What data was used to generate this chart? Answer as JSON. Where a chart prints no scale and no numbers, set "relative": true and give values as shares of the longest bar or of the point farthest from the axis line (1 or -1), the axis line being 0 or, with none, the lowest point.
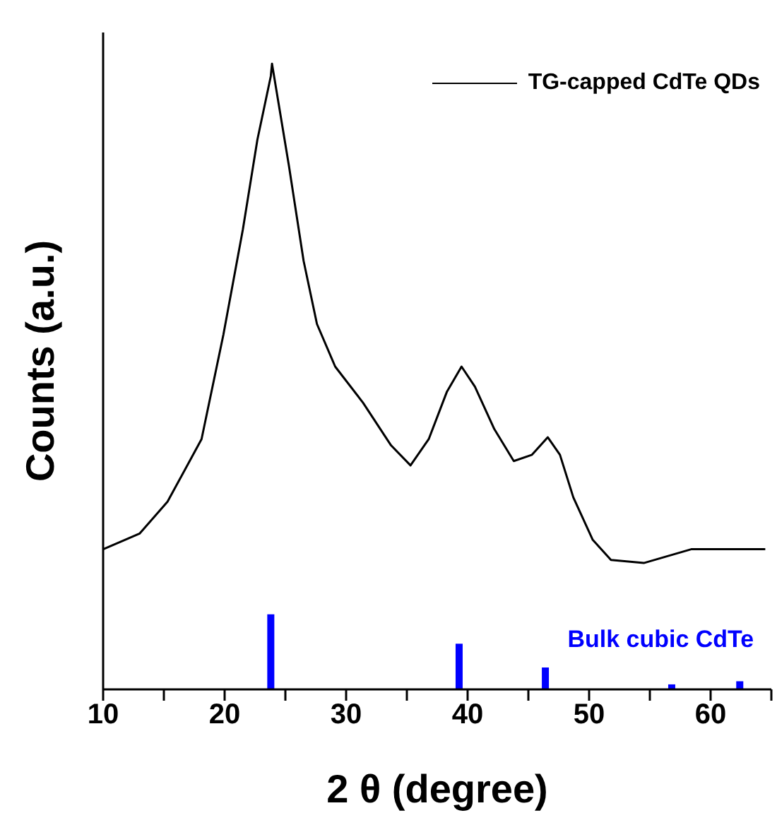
{
  "chart_data": {
    "type": "line",
    "relative": true,
    "xlabel": "2 θ (degree)",
    "ylabel": "Counts (a.u.)",
    "xlim": [
      10,
      65
    ],
    "xticks": [
      10,
      {
        "value": 15,
        "label": null
      },
      20,
      {
        "value": 25,
        "label": null
      },
      30,
      {
        "value": 35,
        "label": null
      },
      40,
      {
        "value": 45,
        "label": null
      },
      50,
      {
        "value": 55,
        "label": null
      },
      60,
      {
        "value": 65,
        "label": null
      }
    ],
    "legend": "top right",
    "grid": false,
    "series": [
      {
        "name": "TG-capped CdTe QDs",
        "color": "#000000",
        "x": [
          10,
          13,
          15.3,
          18.1,
          19.9,
          21.5,
          22.7,
          23.8,
          23.9,
          25.3,
          26.5,
          27.6,
          29.1,
          31.4,
          33.7,
          35.3,
          36.8,
          38.3,
          39.5,
          40.6,
          42.2,
          43.8,
          45.3,
          46.6,
          47.6,
          48.7,
          50.3,
          51.8,
          54.5,
          58.4,
          61.4,
          64.5
        ],
        "values": [
          0.224,
          0.249,
          0.3,
          0.4,
          0.567,
          0.735,
          0.879,
          0.98,
          1,
          0.836,
          0.685,
          0.584,
          0.516,
          0.458,
          0.39,
          0.358,
          0.4,
          0.476,
          0.516,
          0.484,
          0.416,
          0.365,
          0.375,
          0.403,
          0.375,
          0.307,
          0.239,
          0.207,
          0.202,
          0.224,
          0.224,
          0.224
        ]
      },
      {
        "name": "Bulk cubic CdTe",
        "type": "bar",
        "color": "#0000ff",
        "x": [
          23.8,
          39.3,
          46.4,
          56.8,
          62.4
        ],
        "values": [
          0.12,
          0.073,
          0.035,
          0.008,
          0.013
        ]
      }
    ]
  }
}
